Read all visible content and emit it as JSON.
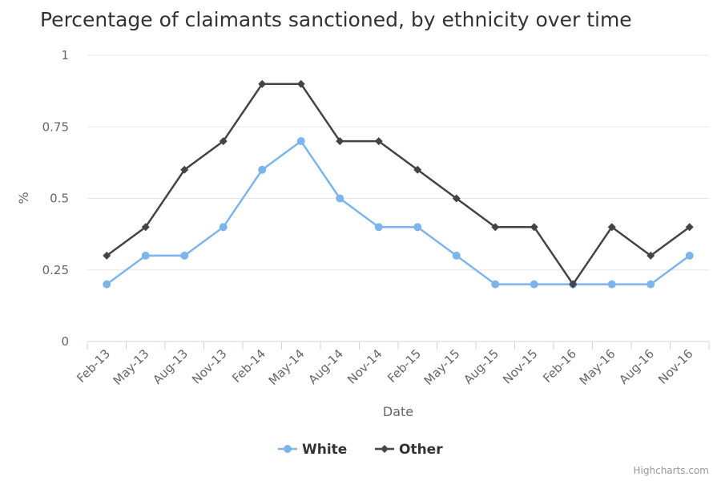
{
  "chart_data": {
    "type": "line",
    "title": "Percentage of claimants sanctioned, by ethnicity over time",
    "xlabel": "Date",
    "ylabel": "%",
    "categories": [
      "Feb-13",
      "May-13",
      "Aug-13",
      "Nov-13",
      "Feb-14",
      "May-14",
      "Aug-14",
      "Nov-14",
      "Feb-15",
      "May-15",
      "Aug-15",
      "Nov-15",
      "Feb-16",
      "May-16",
      "Aug-16",
      "Nov-16"
    ],
    "ylim": [
      0,
      1
    ],
    "yticks": [
      "0",
      "0.25",
      "0.5",
      "0.75",
      "1"
    ],
    "grid": true,
    "legend_position": "bottom",
    "series": [
      {
        "name": "White",
        "color": "#7cb5ec",
        "marker": "circle",
        "values": [
          0.2,
          0.3,
          0.3,
          0.4,
          0.6,
          0.7,
          0.5,
          0.4,
          0.4,
          0.3,
          0.2,
          0.2,
          0.2,
          0.2,
          0.2,
          0.3
        ]
      },
      {
        "name": "Other",
        "color": "#434348",
        "marker": "diamond",
        "values": [
          0.3,
          0.4,
          0.6,
          0.7,
          0.9,
          0.9,
          0.7,
          0.7,
          0.6,
          0.5,
          0.4,
          0.4,
          0.2,
          0.4,
          0.3,
          0.4
        ]
      }
    ]
  },
  "credits": "Highcharts.com"
}
